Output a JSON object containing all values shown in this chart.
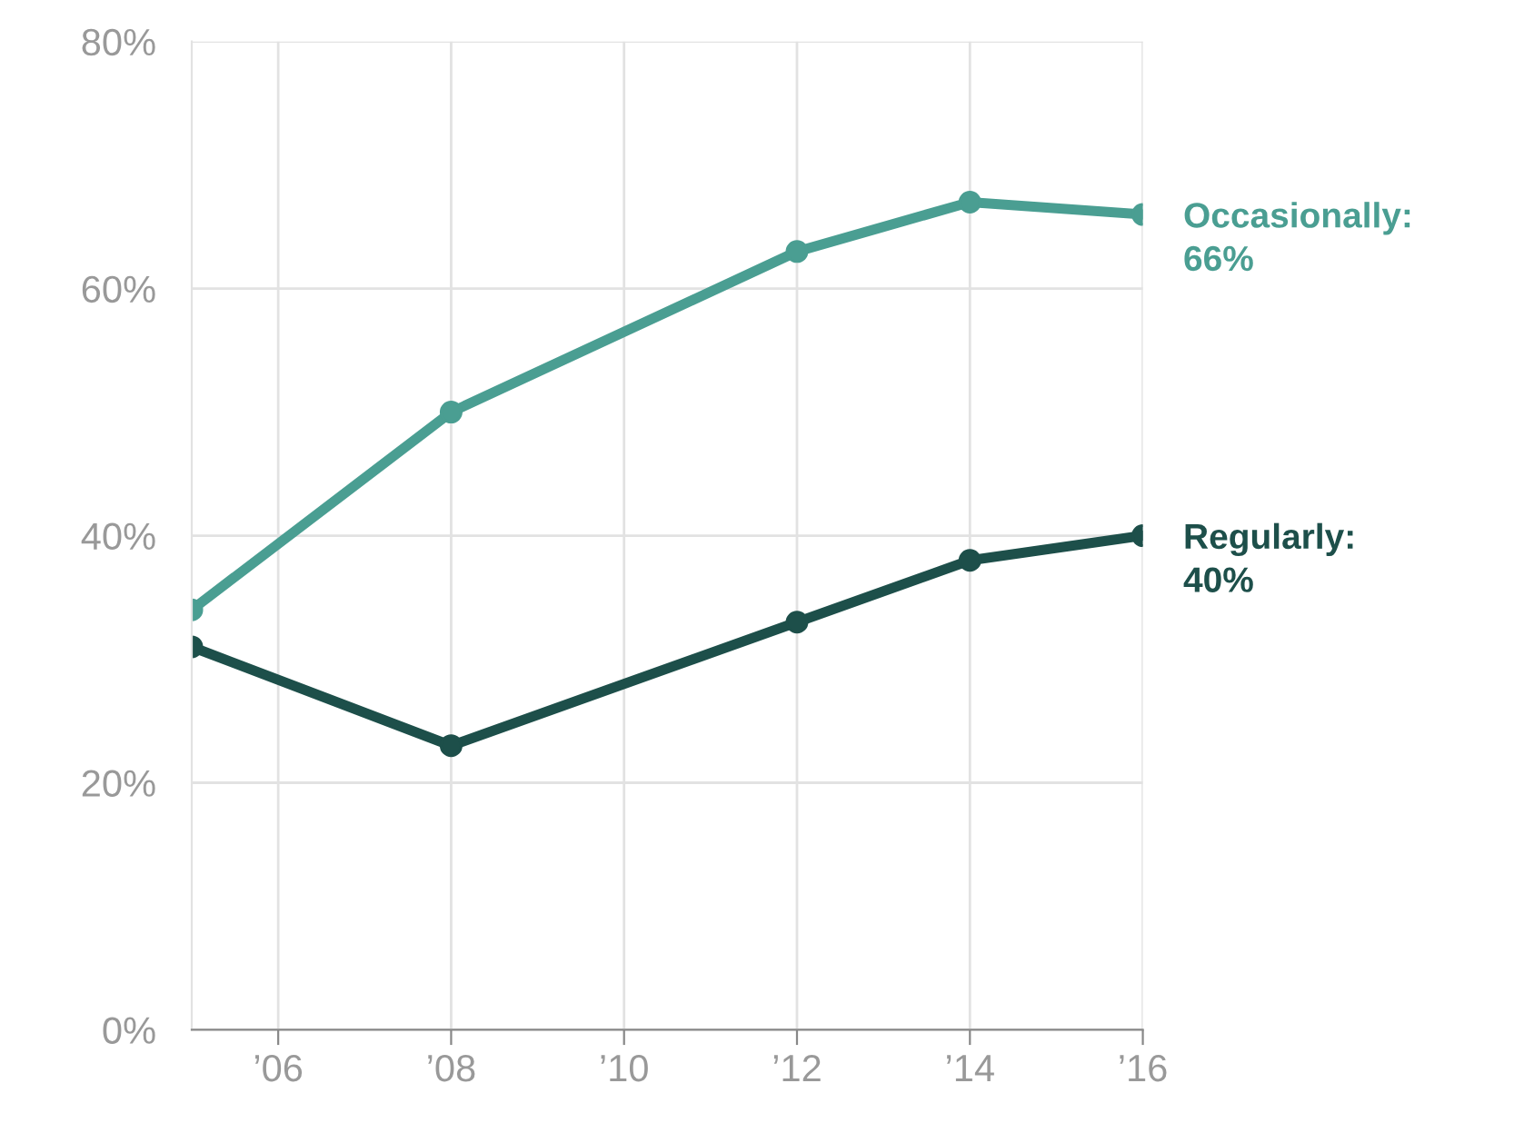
{
  "chart_data": {
    "type": "line",
    "x": [
      2005,
      2008,
      2012,
      2014,
      2016
    ],
    "series": [
      {
        "name": "Occasionally:",
        "color": "#4a9e92",
        "values": [
          34,
          50,
          63,
          67,
          66
        ],
        "value_labels": [
          null,
          null,
          null,
          null,
          "66%"
        ]
      },
      {
        "name": "Regularly:",
        "color": "#1d4f4a",
        "values": [
          31,
          23,
          33,
          38,
          40
        ],
        "value_labels": [
          null,
          null,
          null,
          null,
          "40%"
        ]
      }
    ],
    "xlim": [
      2005,
      2016
    ],
    "xticks": [
      {
        "value": 2006,
        "label": "’06"
      },
      {
        "value": 2008,
        "label": "’08"
      },
      {
        "value": 2010,
        "label": "’10"
      },
      {
        "value": 2012,
        "label": "’12"
      },
      {
        "value": 2014,
        "label": "’14"
      },
      {
        "value": 2016,
        "label": "’16"
      }
    ],
    "ylim": [
      0,
      80
    ],
    "yticks": [
      {
        "value": 0,
        "label": "0%"
      },
      {
        "value": 20,
        "label": "20%"
      },
      {
        "value": 40,
        "label": "40%"
      },
      {
        "value": 60,
        "label": "60%"
      },
      {
        "value": 80,
        "label": "80%"
      }
    ],
    "grid": true,
    "marker": "circle",
    "line_style": "solid",
    "legend": false
  }
}
